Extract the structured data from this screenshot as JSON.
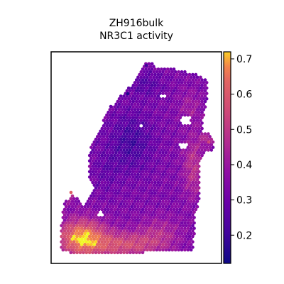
{
  "chart_data": {
    "type": "heatmap",
    "title": "ZH916bulk",
    "subtitle": "NR3C1 activity",
    "xlabel": "",
    "ylabel": "",
    "colormap": "plasma",
    "colorbar": {
      "range": [
        0.12,
        0.72
      ],
      "ticks": [
        0.2,
        0.3,
        0.4,
        0.5,
        0.6,
        0.7
      ],
      "tick_labels": [
        "0.2",
        "0.3",
        "0.4",
        "0.5",
        "0.6",
        "0.7"
      ]
    },
    "grid": false,
    "legend": "colorbar-right",
    "description_regions": [
      {
        "region": "upper tissue",
        "level": 0.33
      },
      {
        "region": "center",
        "level": 0.22
      },
      {
        "region": "right edge",
        "level": 0.47
      },
      {
        "region": "bottom-left",
        "level": 0.68
      }
    ]
  }
}
